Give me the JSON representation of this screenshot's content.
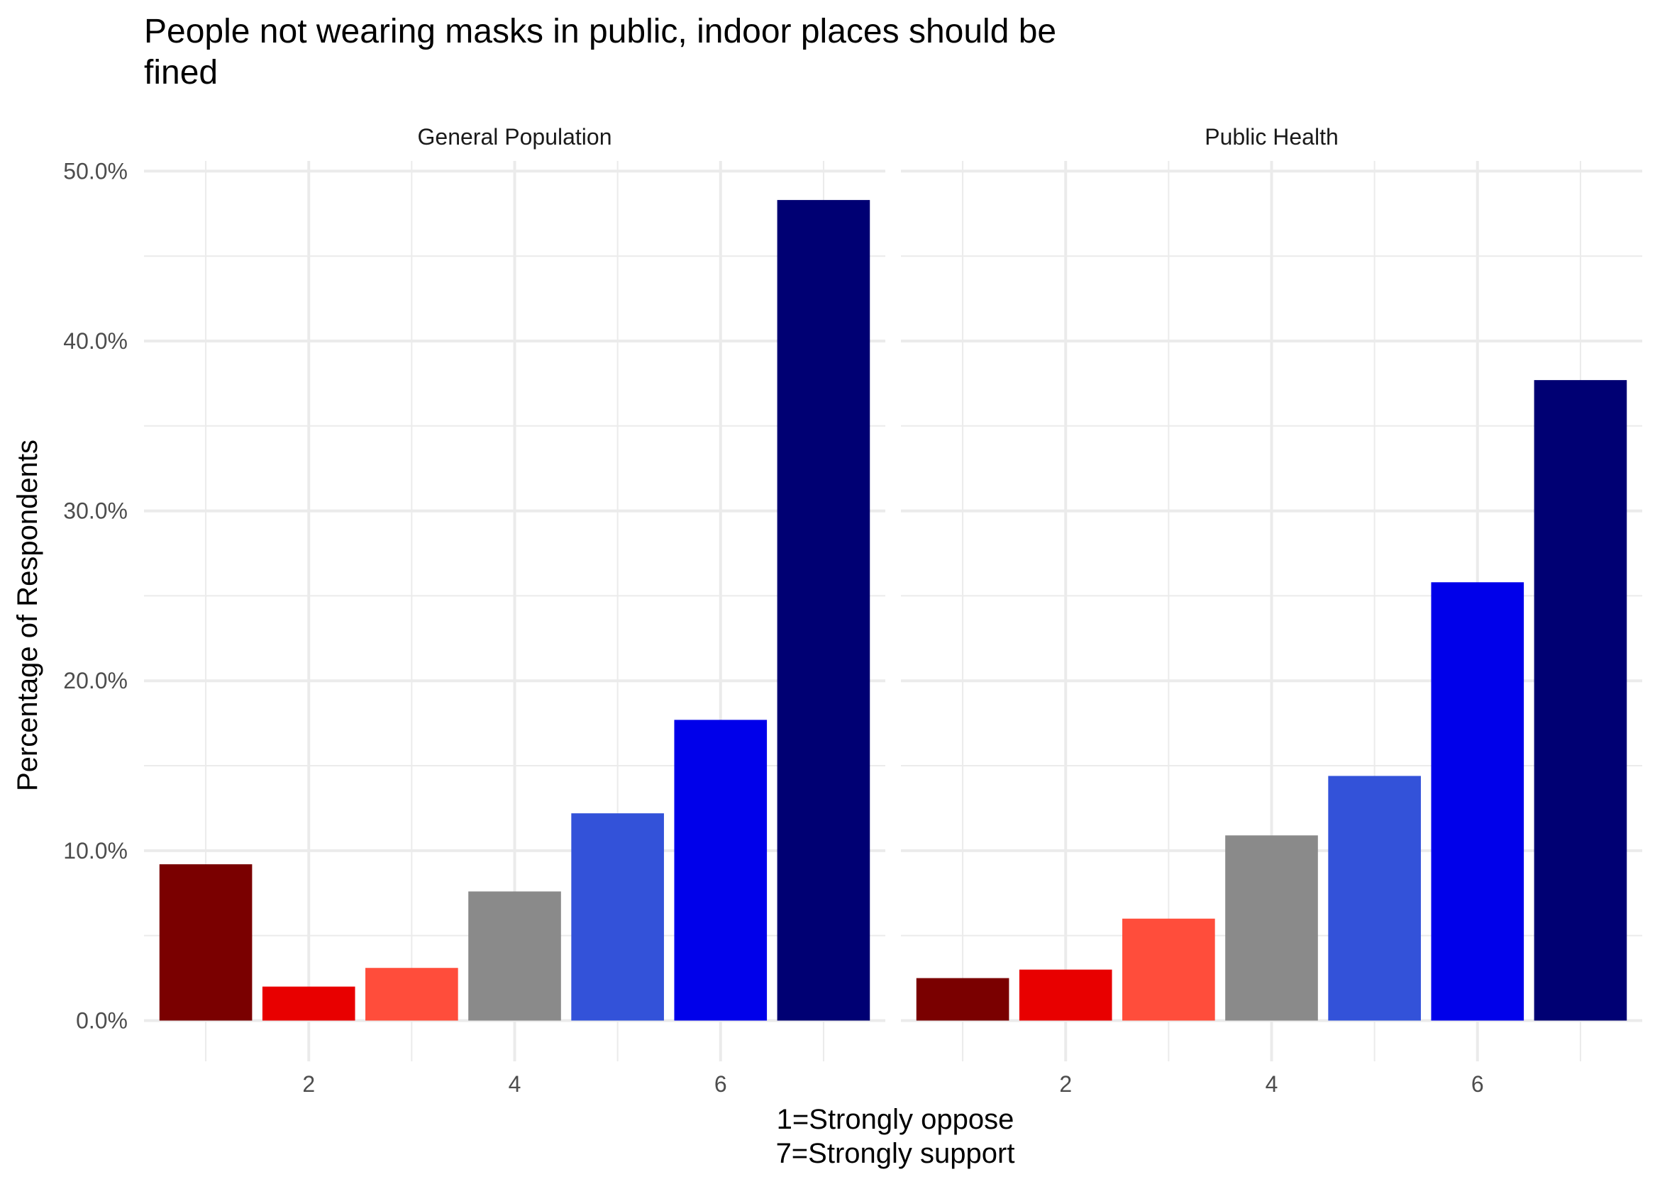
{
  "chart_data": {
    "type": "bar",
    "title_lines": [
      "People not wearing masks in public, indoor places should be",
      "fined"
    ],
    "xlabel_lines": [
      "1=Strongly oppose",
      "7=Strongly support"
    ],
    "ylabel": "Percentage of Respondents",
    "x_tick_labels": [
      "2",
      "4",
      "6"
    ],
    "x_tick_values": [
      2,
      4,
      6
    ],
    "xlim": [
      0.4,
      7.6
    ],
    "y_tick_labels": [
      "0.0%",
      "10.0%",
      "20.0%",
      "30.0%",
      "40.0%",
      "50.0%"
    ],
    "y_tick_values": [
      0,
      10,
      20,
      30,
      40,
      50
    ],
    "ylim": [
      -2.4,
      50.6
    ],
    "grid": true,
    "legend": "none",
    "categories": [
      1,
      2,
      3,
      4,
      5,
      6,
      7
    ],
    "bar_colors": [
      "#7a0000",
      "#e80000",
      "#ff4d3b",
      "#8a8a8a",
      "#3352d9",
      "#0000ea",
      "#000073"
    ],
    "panels": [
      {
        "name": "General Population",
        "values": [
          9.2,
          2.0,
          3.1,
          7.6,
          12.2,
          17.7,
          48.3
        ]
      },
      {
        "name": "Public Health",
        "values": [
          2.5,
          3.0,
          6.0,
          10.9,
          14.4,
          25.8,
          37.7
        ]
      }
    ]
  }
}
